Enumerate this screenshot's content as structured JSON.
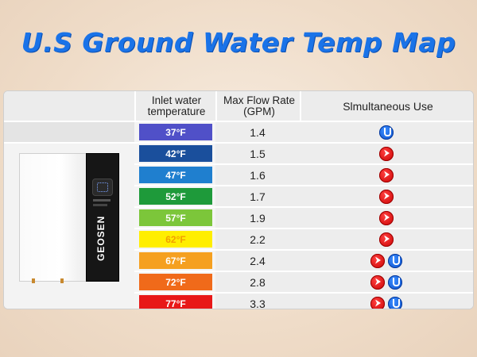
{
  "title": "U.S Ground Water Temp Map",
  "headers": {
    "inlet": "Inlet water\ntemperature",
    "flow": "Max Flow Rate\n(GPM)",
    "use": "Slmultaneous Use"
  },
  "rows": [
    {
      "temp": "37°F",
      "flow": "1.4",
      "color": "#5050c8",
      "icons": [
        "shower-icon"
      ]
    },
    {
      "temp": "42°F",
      "flow": "1.5",
      "color": "#1a4f9c",
      "icons": [
        "faucet-icon"
      ]
    },
    {
      "temp": "47°F",
      "flow": "1.6",
      "color": "#1f7fcf",
      "icons": [
        "faucet-icon"
      ]
    },
    {
      "temp": "52°F",
      "flow": "1.7",
      "color": "#1e9a3a",
      "icons": [
        "faucet-icon"
      ]
    },
    {
      "temp": "57°F",
      "flow": "1.9",
      "color": "#7cc63a",
      "icons": [
        "faucet-icon"
      ]
    },
    {
      "temp": "62°F",
      "flow": "2.2",
      "color": "#ffee00",
      "icons": [
        "faucet-icon"
      ]
    },
    {
      "temp": "67°F",
      "flow": "2.4",
      "color": "#f5a020",
      "icons": [
        "faucet-icon",
        "shower-icon"
      ]
    },
    {
      "temp": "72°F",
      "flow": "2.8",
      "color": "#f06a1a",
      "icons": [
        "faucet-icon",
        "shower-icon"
      ]
    },
    {
      "temp": "77°F",
      "flow": "3.3",
      "color": "#e81818",
      "icons": [
        "faucet-icon",
        "shower-icon"
      ]
    }
  ],
  "heater": {
    "brand": "GEOSEN"
  }
}
